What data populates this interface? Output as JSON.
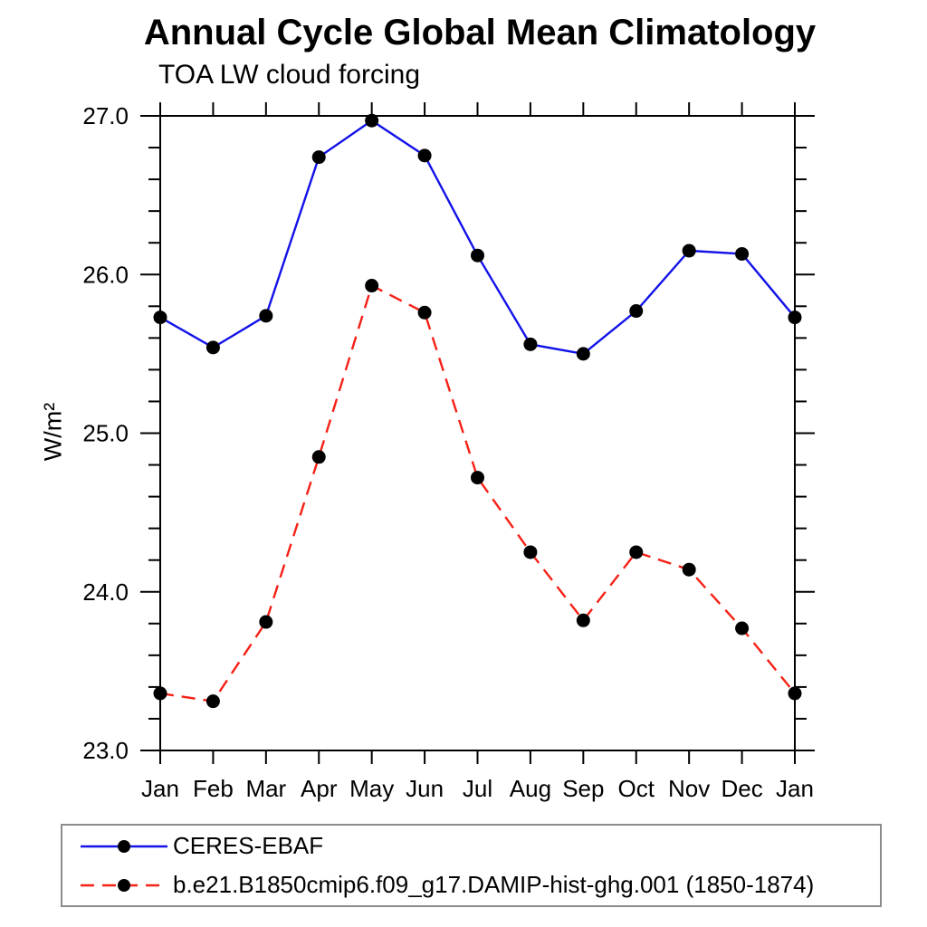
{
  "chart_data": {
    "type": "line",
    "title": "Annual Cycle Global Mean Climatology",
    "subtitle": "TOA LW cloud forcing",
    "ylabel": "W/m²",
    "xlabel": "",
    "categories": [
      "Jan",
      "Feb",
      "Mar",
      "Apr",
      "May",
      "Jun",
      "Jul",
      "Aug",
      "Sep",
      "Oct",
      "Nov",
      "Dec",
      "Jan"
    ],
    "ylim": [
      23.0,
      27.0
    ],
    "yticks": [
      {
        "value": 27.0,
        "label": "27.0"
      },
      {
        "value": 26.0,
        "label": "26.0"
      },
      {
        "value": 25.0,
        "label": "25.0"
      },
      {
        "value": 24.0,
        "label": "24.0"
      },
      {
        "value": 23.0,
        "label": "23.0"
      }
    ],
    "ytick_minor_step": 0.2,
    "grid": false,
    "legend_position": "bottom",
    "axis_color": "#000000",
    "marker": "circle",
    "marker_color": "#000000",
    "series": [
      {
        "name": "CERES-EBAF",
        "color": "#1212e8",
        "line_style": "solid",
        "values": [
          25.73,
          25.54,
          25.74,
          26.74,
          26.97,
          26.75,
          26.12,
          25.56,
          25.5,
          25.77,
          26.15,
          26.13,
          25.73
        ]
      },
      {
        "name": "b.e21.B1850cmip6.f09_g17.DAMIP-hist-ghg.001 (1850-1874)",
        "color": "#f62015",
        "line_style": "dashed",
        "values": [
          23.36,
          23.31,
          23.81,
          24.85,
          25.93,
          25.76,
          24.72,
          24.25,
          23.82,
          24.25,
          24.14,
          23.77,
          23.36
        ]
      }
    ]
  }
}
